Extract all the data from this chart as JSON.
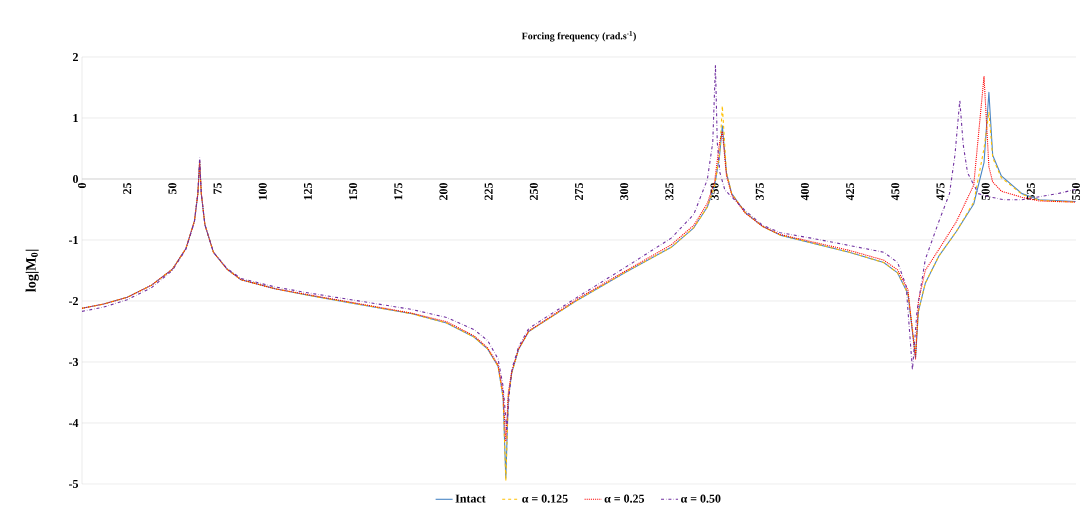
{
  "chart_data": {
    "type": "line",
    "xlabel": "Forcing frequency (rad.s$^{-1}$)",
    "ylabel": "log|M$_{0}$|",
    "xlim": [
      0,
      550
    ],
    "ylim": [
      -5,
      2
    ],
    "xticks": [
      0,
      25,
      50,
      75,
      100,
      125,
      150,
      175,
      200,
      225,
      250,
      275,
      300,
      325,
      350,
      375,
      400,
      425,
      450,
      475,
      500,
      525,
      550
    ],
    "yticks": [
      -5,
      -4,
      -3,
      -2,
      -1,
      0,
      1,
      2
    ],
    "grid": "y",
    "legend": "bottom",
    "marker": "none",
    "series": [
      {
        "name": "Intact",
        "color": "#4a86c5",
        "line_style": "solid",
        "x": [
          0,
          12,
          25,
          38.5,
          50,
          57.5,
          62.2,
          64.1,
          65.1,
          66,
          68,
          72.7,
          80.3,
          87.9,
          106.8,
          125.8,
          144.8,
          163.8,
          182.7,
          201.7,
          216.9,
          224.5,
          230.2,
          233,
          234.5,
          235.9,
          237.8,
          241.6,
          247.2,
          252.4,
          275,
          300,
          326,
          338.5,
          346,
          350,
          352.8,
          354.3,
          356.6,
          359.5,
          367,
          376.7,
          386.3,
          405.4,
          424.5,
          443.6,
          451.3,
          457,
          461.2,
          462.8,
          466.6,
          474.2,
          483.8,
          493.4,
          499.1,
          501.8,
          503.9,
          508.7,
          520.1,
          529.7,
          549.8
        ],
        "values": [
          -2.12,
          -2.05,
          -1.94,
          -1.74,
          -1.48,
          -1.14,
          -0.69,
          -0.24,
          0.3,
          -0.24,
          -0.75,
          -1.2,
          -1.48,
          -1.65,
          -1.8,
          -1.91,
          -2.01,
          -2.11,
          -2.21,
          -2.36,
          -2.59,
          -2.79,
          -3.07,
          -3.58,
          -4.9,
          -3.58,
          -3.18,
          -2.79,
          -2.5,
          -2.4,
          -1.97,
          -1.54,
          -1.12,
          -0.8,
          -0.46,
          -0.12,
          0.39,
          0.87,
          0.1,
          -0.24,
          -0.55,
          -0.78,
          -0.92,
          -1.06,
          -1.2,
          -1.37,
          -1.54,
          -1.88,
          -2.93,
          -2.17,
          -1.71,
          -1.26,
          -0.86,
          -0.41,
          0.27,
          1.42,
          0.39,
          0.05,
          -0.24,
          -0.34,
          -0.37
        ]
      },
      {
        "name": "α = 0.125",
        "color": "#ffc000",
        "line_style": "dashed",
        "x": [
          0,
          12,
          25,
          38.5,
          50,
          57.5,
          62.2,
          64.1,
          65.1,
          66,
          68,
          72.7,
          80.3,
          87.9,
          106.8,
          125.8,
          144.8,
          163.8,
          182.7,
          201.7,
          216.9,
          224.5,
          230.2,
          233,
          234.5,
          235.9,
          237.8,
          241.6,
          247.2,
          252.4,
          275,
          300,
          326,
          338.5,
          346,
          350,
          352.8,
          354.3,
          356.6,
          359.5,
          367,
          376.7,
          386.3,
          405.4,
          424.5,
          443.6,
          451.3,
          457,
          461.2,
          462.8,
          466.6,
          474.2,
          483.8,
          493.4,
          499.1,
          501.8,
          503.9,
          508.7,
          520.1,
          529.7,
          549.8
        ],
        "values": [
          -2.12,
          -2.05,
          -1.94,
          -1.74,
          -1.48,
          -1.14,
          -0.69,
          -0.24,
          0.25,
          -0.24,
          -0.75,
          -1.2,
          -1.48,
          -1.65,
          -1.8,
          -1.91,
          -2.01,
          -2.11,
          -2.21,
          -2.36,
          -2.59,
          -2.79,
          -3.07,
          -3.58,
          -4.95,
          -3.58,
          -3.18,
          -2.79,
          -2.5,
          -2.4,
          -1.97,
          -1.54,
          -1.12,
          -0.8,
          -0.46,
          -0.12,
          0.4,
          1.2,
          0.1,
          -0.24,
          -0.55,
          -0.78,
          -0.92,
          -1.06,
          -1.2,
          -1.37,
          -1.54,
          -1.88,
          -2.85,
          -2.17,
          -1.71,
          -1.26,
          -0.86,
          -0.38,
          0.5,
          1.1,
          0.35,
          0.02,
          -0.25,
          -0.35,
          -0.38
        ]
      },
      {
        "name": "α = 0.25",
        "color": "#ff0000",
        "line_style": "dotted",
        "x": [
          0,
          12,
          25,
          38.5,
          50,
          57.5,
          62.2,
          64.1,
          65.1,
          66,
          68,
          72.7,
          80.3,
          87.9,
          106.8,
          125.8,
          144.8,
          163.8,
          182.7,
          201.7,
          216.9,
          224.5,
          230.2,
          233,
          234.5,
          235.9,
          237.8,
          241.6,
          247.2,
          252.4,
          275,
          300,
          326,
          338.5,
          346,
          350,
          352.8,
          354.3,
          356.6,
          359.5,
          367,
          376.7,
          386.3,
          405.4,
          424.5,
          443.6,
          451.3,
          457,
          461.2,
          462.8,
          466.6,
          474.2,
          483.8,
          493.4,
          499.1,
          501.8,
          503.9,
          508.7,
          520.1,
          529.7,
          549.8
        ],
        "values": [
          -2.12,
          -2.05,
          -1.94,
          -1.74,
          -1.48,
          -1.14,
          -0.69,
          -0.24,
          0.3,
          -0.24,
          -0.75,
          -1.2,
          -1.48,
          -1.65,
          -1.8,
          -1.9,
          -2,
          -2.1,
          -2.2,
          -2.34,
          -2.57,
          -2.77,
          -3.05,
          -3.5,
          -4.3,
          -3.5,
          -3.15,
          -2.78,
          -2.49,
          -2.39,
          -1.95,
          -1.52,
          -1.08,
          -0.76,
          -0.4,
          -0.05,
          0.6,
          0.78,
          0.05,
          -0.26,
          -0.56,
          -0.78,
          -0.91,
          -1.04,
          -1.17,
          -1.33,
          -1.49,
          -1.82,
          -2.95,
          -2,
          -1.5,
          -1.15,
          -0.7,
          -0.1,
          1.68,
          0.2,
          -0.05,
          -0.2,
          -0.3,
          -0.36,
          -0.38
        ]
      },
      {
        "name": "α = 0.50",
        "color": "#7030a0",
        "line_style": "dashdotted",
        "x": [
          0,
          12,
          25,
          38.5,
          50,
          57.5,
          62.2,
          64.1,
          65.1,
          66,
          68,
          72.7,
          80.3,
          87.9,
          106.8,
          125.8,
          144.8,
          163.8,
          182.7,
          201.7,
          216.9,
          224.5,
          230.2,
          233,
          235,
          236.5,
          238,
          241.6,
          247.2,
          252.4,
          275,
          300,
          326,
          338.5,
          346,
          349,
          350.5,
          351.5,
          353,
          355.7,
          367,
          376.7,
          386.3,
          405.4,
          424.5,
          443.6,
          451.3,
          456,
          459.5,
          462,
          466.6,
          474.2,
          480,
          483,
          485.7,
          487.6,
          490,
          496,
          501.8,
          510,
          520,
          530,
          540,
          549.8
        ],
        "values": [
          -2.17,
          -2.1,
          -1.98,
          -1.78,
          -1.5,
          -1.15,
          -0.7,
          -0.24,
          0.35,
          -0.24,
          -0.75,
          -1.2,
          -1.47,
          -1.63,
          -1.77,
          -1.87,
          -1.96,
          -2.05,
          -2.14,
          -2.27,
          -2.47,
          -2.65,
          -2.95,
          -3.4,
          -4.1,
          -3.5,
          -3.1,
          -2.75,
          -2.45,
          -2.35,
          -1.92,
          -1.46,
          -0.97,
          -0.58,
          -0.01,
          0.6,
          1.87,
          0.6,
          0.1,
          -0.18,
          -0.52,
          -0.76,
          -0.88,
          -0.98,
          -1.09,
          -1.2,
          -1.37,
          -1.75,
          -3.13,
          -2.17,
          -1.32,
          -0.69,
          -0.24,
          0.39,
          1.29,
          0.56,
          0.1,
          -0.24,
          -0.29,
          -0.34,
          -0.34,
          -0.29,
          -0.24,
          -0.17
        ]
      }
    ]
  }
}
